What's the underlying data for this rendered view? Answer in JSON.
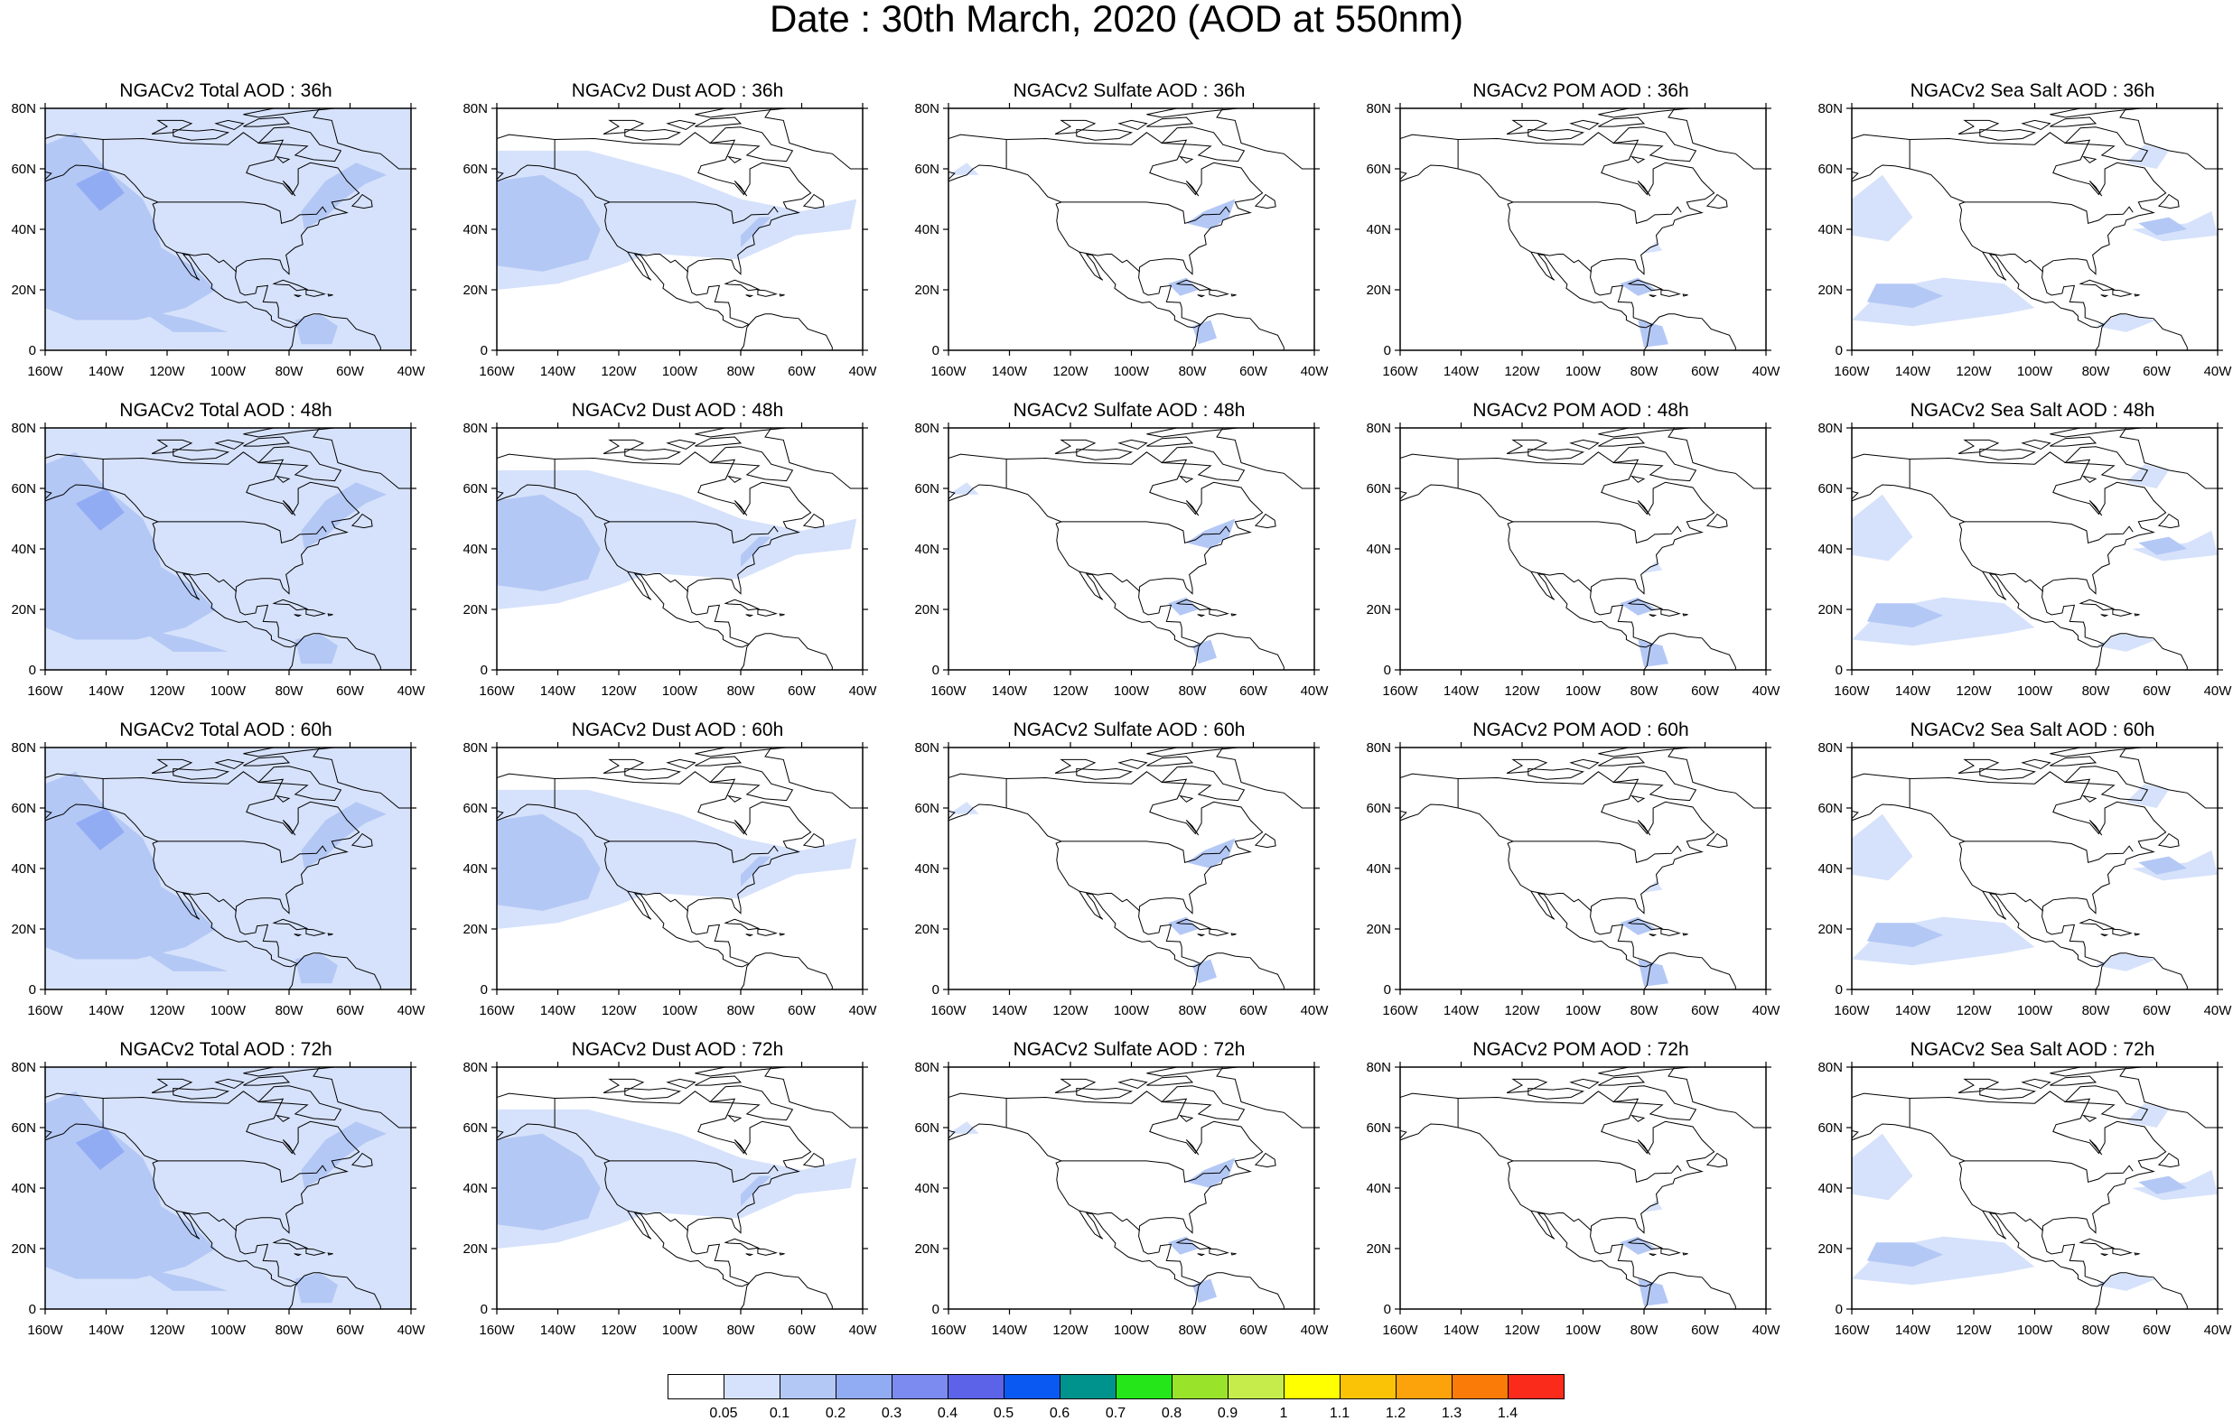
{
  "title": "Date : 30th March, 2020 (AOD at 550nm)",
  "panels": {
    "lat_ticks": [
      "0",
      "20N",
      "40N",
      "60N",
      "80N"
    ],
    "lon_ticks": [
      "160W",
      "140W",
      "120W",
      "100W",
      "80W",
      "60W",
      "40W"
    ],
    "columns": [
      "total",
      "dust",
      "sulfate",
      "pom",
      "seasalt"
    ],
    "rows": [
      [
        "NGACv2 Total AOD : 36h",
        "NGACv2 Dust AOD : 36h",
        "NGACv2 Sulfate AOD : 36h",
        "NGACv2 POM AOD : 36h",
        "NGACv2 Sea Salt AOD : 36h"
      ],
      [
        "NGACv2 Total AOD : 48h",
        "NGACv2 Dust AOD : 48h",
        "NGACv2 Sulfate AOD : 48h",
        "NGACv2 POM AOD : 48h",
        "NGACv2 Sea Salt AOD : 48h"
      ],
      [
        "NGACv2 Total AOD : 60h",
        "NGACv2 Dust AOD : 60h",
        "NGACv2 Sulfate AOD : 60h",
        "NGACv2 POM AOD : 60h",
        "NGACv2 Sea Salt AOD : 60h"
      ],
      [
        "NGACv2 Total AOD : 72h",
        "NGACv2 Dust AOD : 72h",
        "NGACv2 Sulfate AOD : 72h",
        "NGACv2 POM AOD : 72h",
        "NGACv2 Sea Salt  AOD : 72h"
      ]
    ]
  },
  "colorbar": {
    "levels": [
      "0.05",
      "0.1",
      "0.2",
      "0.3",
      "0.4",
      "0.5",
      "0.6",
      "0.7",
      "0.8",
      "0.9",
      "1",
      "1.1",
      "1.2",
      "1.3",
      "1.4"
    ],
    "colors": [
      "#ffffff",
      "#d6e2fb",
      "#b4c8f5",
      "#92acf4",
      "#7b8bf0",
      "#5c63e8",
      "#0a59f2",
      "#00928d",
      "#24e619",
      "#9ae32b",
      "#c6ec4c",
      "#ffff00",
      "#fbc306",
      "#fca20a",
      "#fb7b08",
      "#fb2b1c"
    ]
  },
  "palette": {
    "light_aod": "#d6e2fb",
    "medium_aod": "#b4c8f5",
    "higher_aod": "#92acf4",
    "coastline": "#000000"
  }
}
